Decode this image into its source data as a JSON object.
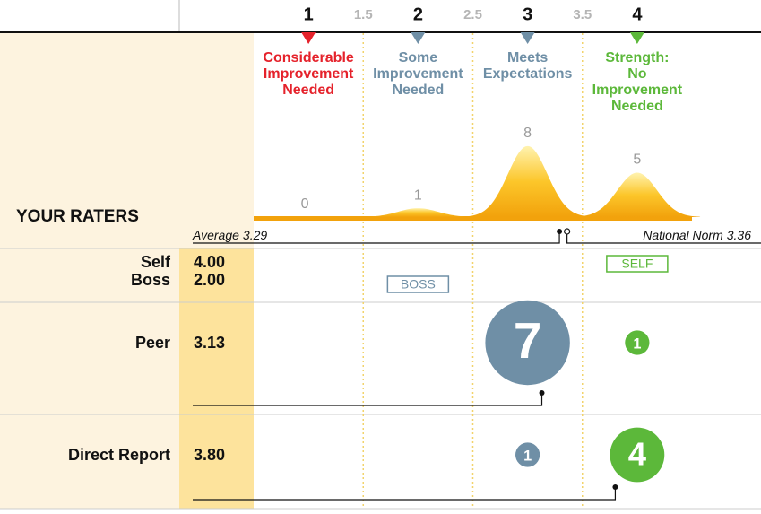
{
  "chart_data": {
    "type": "rater-distribution",
    "xlim": [
      0.5,
      4.5
    ],
    "xticks": [
      1,
      1.5,
      2,
      2.5,
      3,
      3.5,
      4
    ],
    "categories": [
      {
        "lines": [
          "Considerable",
          "Improvement",
          "Needed"
        ],
        "color": "#e5222b",
        "at": 1,
        "count": 0
      },
      {
        "lines": [
          "Some",
          "Improvement",
          "Needed"
        ],
        "color": "#6f8fa6",
        "at": 2,
        "count": 1
      },
      {
        "lines": [
          "Meets",
          "Expectations"
        ],
        "color": "#6f8fa6",
        "at": 3,
        "count": 8
      },
      {
        "lines": [
          "Strength:",
          "No",
          "Improvement",
          "Needed"
        ],
        "color": "#5cb83a",
        "at": 4,
        "count": 5
      }
    ],
    "distribution_title": "YOUR RATERS",
    "average": {
      "label": "Average",
      "value": 3.29
    },
    "norm": {
      "label": "National Norm",
      "value": 3.36
    },
    "rows": [
      {
        "raters": [
          {
            "name": "Self",
            "score": 4,
            "score_label": "4.00",
            "badge": "SELF",
            "badge_at": 4
          },
          {
            "name": "Boss",
            "score": 2,
            "score_label": "2.00",
            "badge": "BOSS",
            "badge_at": 2
          }
        ]
      },
      {
        "raters": [
          {
            "name": "Peer",
            "score": 3.13,
            "bubbles": [
              {
                "at": 3,
                "count": 7
              },
              {
                "at": 4,
                "count": 1
              }
            ]
          }
        ]
      },
      {
        "raters": [
          {
            "name": "Direct Report",
            "score": 3.8,
            "score_label": "3.80",
            "bubbles": [
              {
                "at": 3,
                "count": 1
              },
              {
                "at": 4,
                "count": 4
              }
            ]
          }
        ]
      }
    ]
  }
}
